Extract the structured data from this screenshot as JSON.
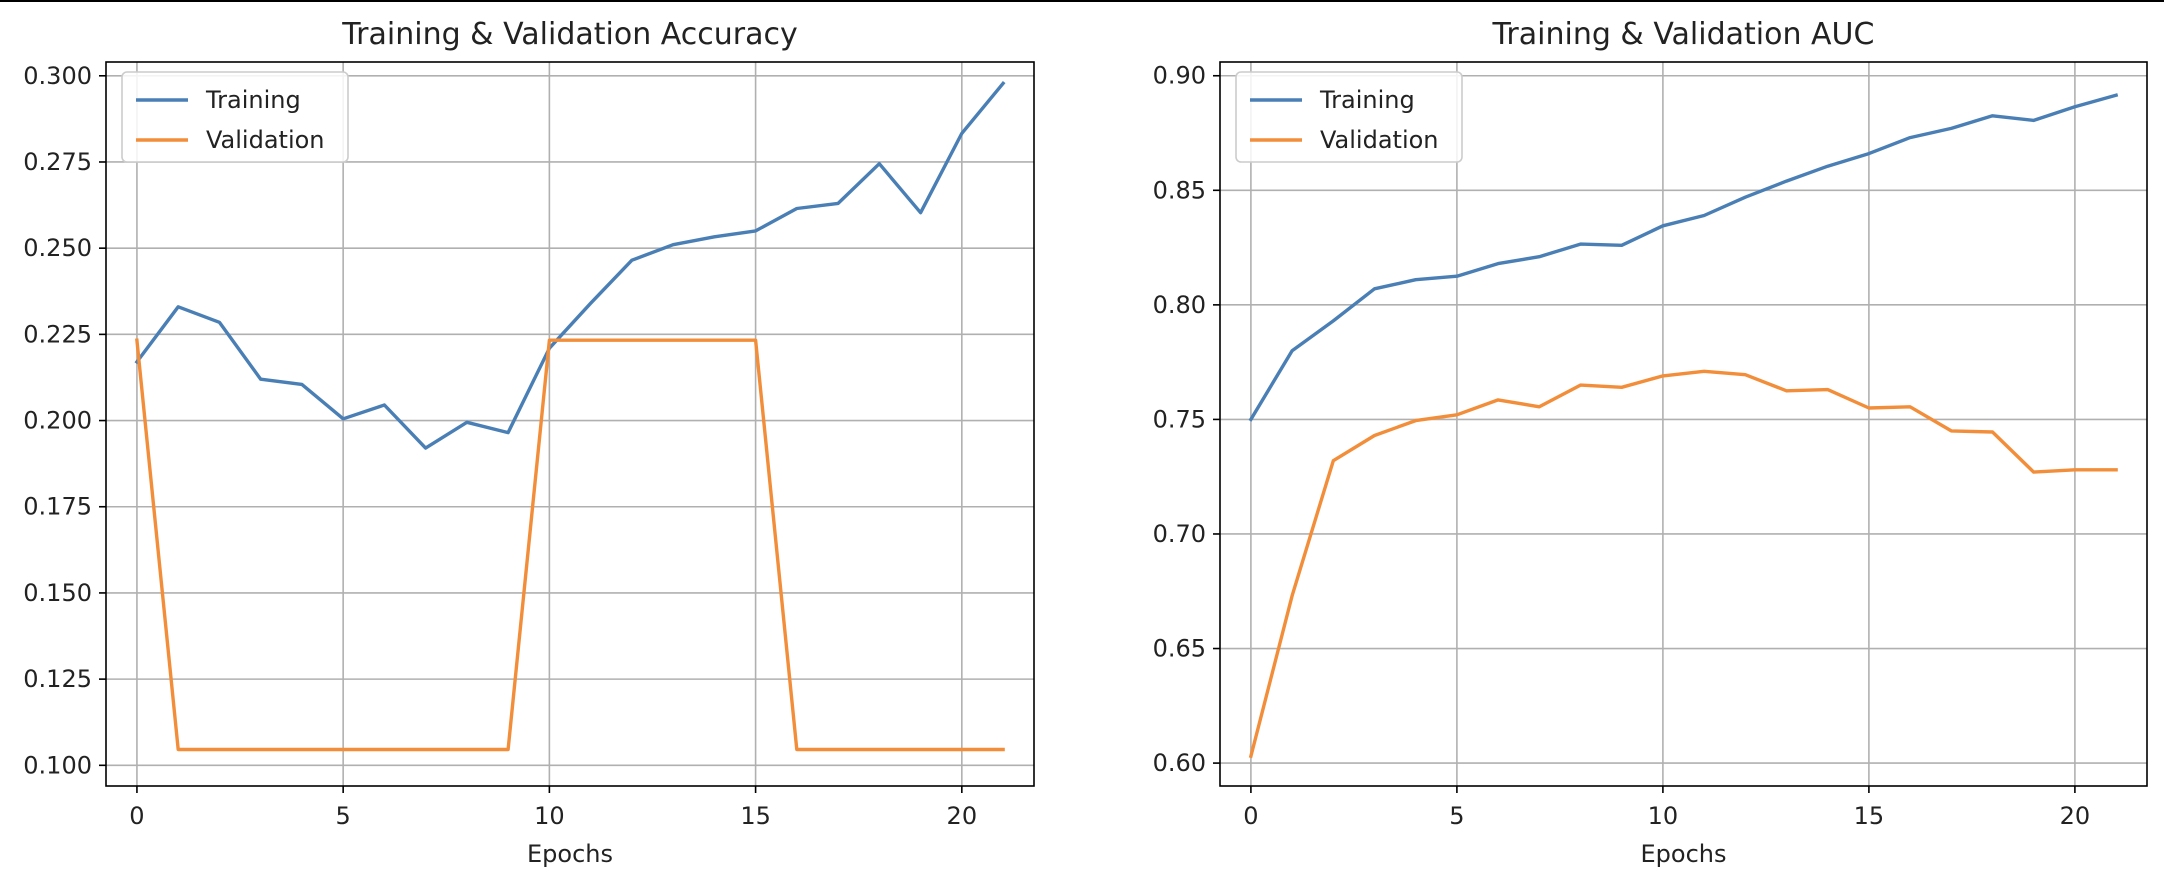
{
  "colors": {
    "training": "#4a7fb5",
    "validation": "#f28e3a",
    "grid": "#b0b0b0",
    "axis": "#000000"
  },
  "chart_data": [
    {
      "type": "line",
      "title": "Training & Validation Accuracy",
      "xlabel": "Epochs",
      "ylabel": "",
      "xlim": [
        -0.75,
        21.75
      ],
      "ylim": [
        0.094,
        0.304
      ],
      "xticks": [
        0,
        5,
        10,
        15,
        20
      ],
      "yticks": [
        0.1,
        0.125,
        0.15,
        0.175,
        0.2,
        0.225,
        0.25,
        0.275,
        0.3
      ],
      "ytick_labels": [
        "0.100",
        "0.125",
        "0.150",
        "0.175",
        "0.200",
        "0.225",
        "0.250",
        "0.275",
        "0.300"
      ],
      "grid": true,
      "legend": "top-left",
      "x": [
        0,
        1,
        2,
        3,
        4,
        5,
        6,
        7,
        8,
        9,
        10,
        11,
        12,
        13,
        14,
        15,
        16,
        17,
        18,
        19,
        20,
        21
      ],
      "series": [
        {
          "name": "Training",
          "color": "#4a7fb5",
          "values": [
            0.217,
            0.233,
            0.2285,
            0.212,
            0.2105,
            0.2005,
            0.2045,
            0.192,
            0.1995,
            0.1965,
            0.221,
            0.234,
            0.2465,
            0.251,
            0.2533,
            0.255,
            0.2615,
            0.263,
            0.2745,
            0.2603,
            0.2833,
            0.2978
          ]
        },
        {
          "name": "Validation",
          "color": "#f28e3a",
          "values": [
            0.2233,
            0.1046,
            0.1046,
            0.1046,
            0.1046,
            0.1046,
            0.1046,
            0.1046,
            0.1046,
            0.1046,
            0.2233,
            0.2233,
            0.2233,
            0.2233,
            0.2233,
            0.2233,
            0.1046,
            0.1046,
            0.1046,
            0.1046,
            0.1046,
            0.1046
          ]
        }
      ]
    },
    {
      "type": "line",
      "title": "Training & Validation AUC",
      "xlabel": "Epochs",
      "ylabel": "",
      "xlim": [
        -0.75,
        21.75
      ],
      "ylim": [
        0.59,
        0.906
      ],
      "xticks": [
        0,
        5,
        10,
        15,
        20
      ],
      "yticks": [
        0.6,
        0.65,
        0.7,
        0.75,
        0.8,
        0.85,
        0.9
      ],
      "ytick_labels": [
        "0.60",
        "0.65",
        "0.70",
        "0.75",
        "0.80",
        "0.85",
        "0.90"
      ],
      "grid": true,
      "legend": "top-left",
      "x": [
        0,
        1,
        2,
        3,
        4,
        5,
        6,
        7,
        8,
        9,
        10,
        11,
        12,
        13,
        14,
        15,
        16,
        17,
        18,
        19,
        20,
        21
      ],
      "series": [
        {
          "name": "Training",
          "color": "#4a7fb5",
          "values": [
            0.75,
            0.78,
            0.793,
            0.807,
            0.811,
            0.8125,
            0.818,
            0.821,
            0.8265,
            0.826,
            0.8345,
            0.839,
            0.847,
            0.854,
            0.8605,
            0.866,
            0.873,
            0.877,
            0.8825,
            0.8805,
            0.8865,
            0.8915
          ]
        },
        {
          "name": "Validation",
          "color": "#f28e3a",
          "values": [
            0.603,
            0.673,
            0.732,
            0.743,
            0.7495,
            0.752,
            0.7585,
            0.7555,
            0.765,
            0.764,
            0.769,
            0.771,
            0.7695,
            0.7625,
            0.763,
            0.755,
            0.7555,
            0.745,
            0.7445,
            0.727,
            0.728,
            0.728
          ]
        }
      ]
    }
  ]
}
